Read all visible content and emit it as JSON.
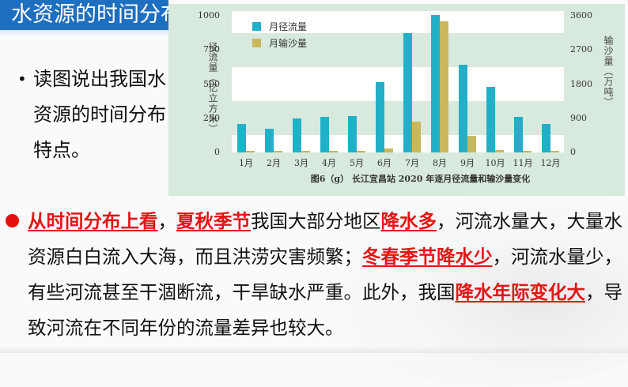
{
  "slide": {
    "title": "水资源的时间分布",
    "question": "读图说出我国水资源的时间分布特点。",
    "bullet": "•",
    "answer_segments": [
      {
        "text": "从时间分布上看",
        "highlight": true
      },
      {
        "text": "，",
        "highlight": false
      },
      {
        "text": "夏秋季节",
        "highlight": true
      },
      {
        "text": "我国大部分地区",
        "highlight": false
      },
      {
        "text": "降水多",
        "highlight": true
      },
      {
        "text": "，河流水量大，大量水资源白白流入大海，而且洪涝灾害频繁；",
        "highlight": false
      },
      {
        "text": "冬春季节降水少",
        "highlight": true
      },
      {
        "text": "，河流水量少，有些河流甚至干涸断流，干旱缺水严重。此外，我国",
        "highlight": false
      },
      {
        "text": "降水年际变化大",
        "highlight": true
      },
      {
        "text": "，导致河流在不同年份的流量差异也较大。",
        "highlight": false
      }
    ]
  },
  "colors": {
    "title_bar": "#1f6fc0",
    "highlight_red": "#e41515",
    "chart_bg": "#d8e9dd",
    "runoff": "#22b0c8",
    "sediment": "#c9b75b"
  },
  "chart_data": {
    "type": "bar",
    "title": "图6（g）  长江宜昌站 2020 年逐月径流量和输沙量变化",
    "categories": [
      "1月",
      "2月",
      "3月",
      "4月",
      "5月",
      "6月",
      "7月",
      "8月",
      "9月",
      "10月",
      "11月",
      "12月"
    ],
    "series": [
      {
        "name": "月径流量",
        "axis": "left",
        "values": [
          208,
          173,
          248,
          260,
          266,
          514,
          873,
          1006,
          642,
          480,
          260,
          208
        ]
      },
      {
        "name": "月输沙量",
        "axis": "right",
        "values": [
          20,
          20,
          20,
          20,
          30,
          104,
          810,
          3456,
          437,
          70,
          20,
          20
        ]
      }
    ],
    "ylabel": "径流量（亿立方米）",
    "ylabel_right": "输沙量（万吨）",
    "yticks": [
      0,
      250,
      500,
      750,
      1000
    ],
    "yticks_right": [
      0,
      900,
      1800,
      2700,
      3600
    ],
    "ylim": [
      0,
      1000
    ],
    "ylim_right": [
      0,
      3600
    ],
    "legend": [
      "月径流量",
      "月输沙量"
    ],
    "legend_position": "upper left",
    "grid": "alternating horizontal bands"
  }
}
